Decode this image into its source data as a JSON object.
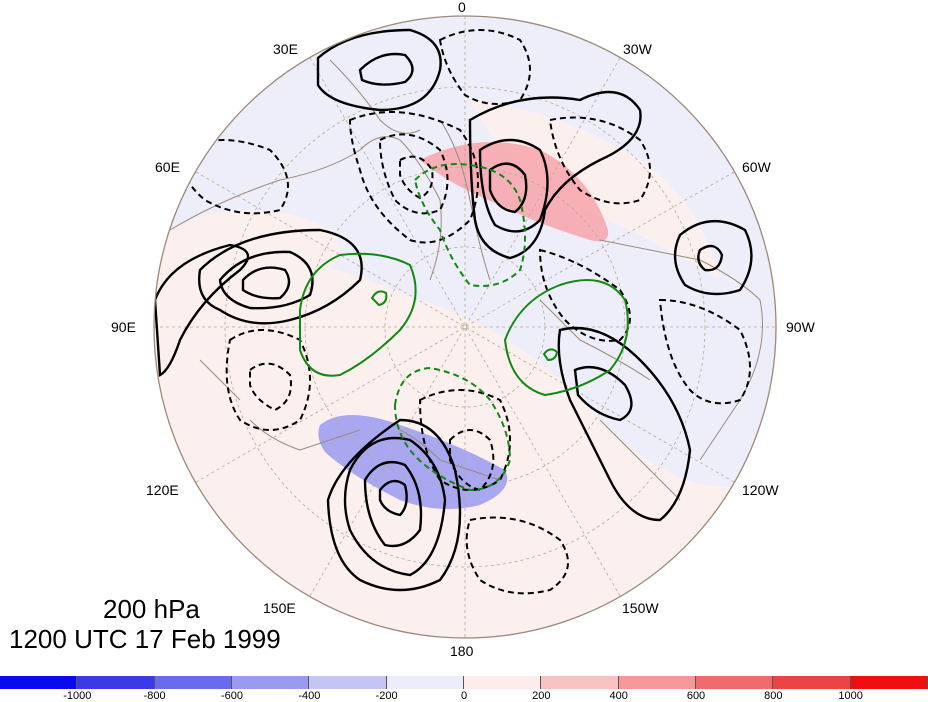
{
  "caption": {
    "level": "200 hPa",
    "datetime": "1200 UTC 17 Feb 1999"
  },
  "longitude_labels": {
    "lon_0": "0",
    "lon_30E": "30E",
    "lon_30W": "30W",
    "lon_60E": "60E",
    "lon_60W": "60W",
    "lon_90E": "90E",
    "lon_90W": "90W",
    "lon_120E": "120E",
    "lon_120W": "120W",
    "lon_150E": "150E",
    "lon_150W": "150W",
    "lon_180": "180"
  },
  "colorbar": {
    "ticks": [
      "-1000",
      "-800",
      "-600",
      "-400",
      "-200",
      "0",
      "200",
      "400",
      "600",
      "800",
      "1000"
    ],
    "colors": [
      "#0a0aee",
      "#3a3ae8",
      "#6a6aec",
      "#9a9af0",
      "#c4c4f5",
      "#ececfb",
      "#fdeceb",
      "#f8c2c2",
      "#f49898",
      "#f06c6c",
      "#ec4444",
      "#ee1010"
    ]
  },
  "colors": {
    "map_background": "#eeeefb",
    "pole_ring": "#fcefee",
    "positive_anomaly": "#f7a3aa",
    "negative_anomaly": "#9a9aef",
    "contour": "#000000",
    "green_contour": "#118811",
    "coastline": "#9a8a78",
    "graticule": "#b8a890"
  }
}
